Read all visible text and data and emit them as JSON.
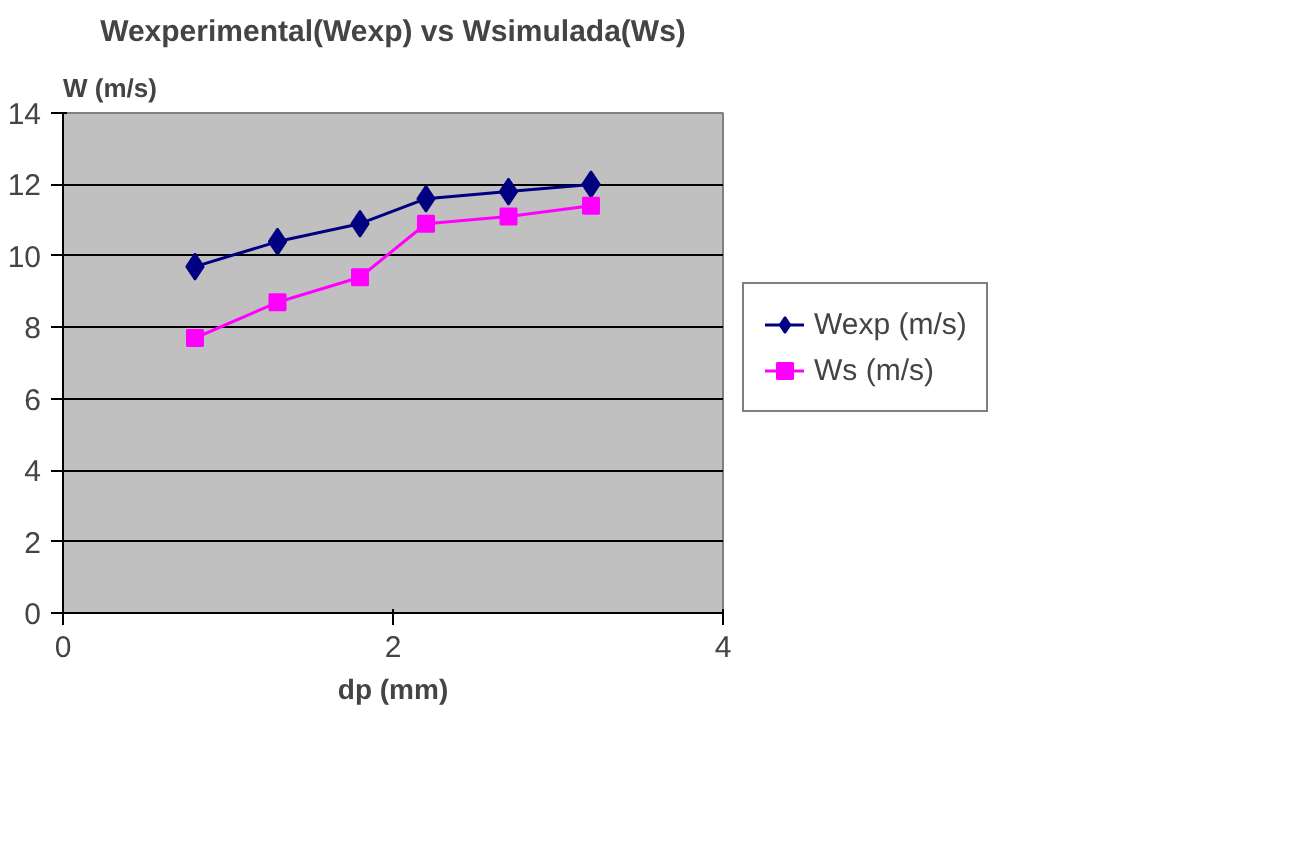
{
  "chart_data": {
    "type": "line",
    "title": "Wexperimental(Wexp) vs Wsimulada(Ws)",
    "xlabel": "dp (mm)",
    "ylabel": "W (m/s)",
    "x": [
      0.8,
      1.3,
      1.8,
      2.2,
      2.7,
      3.2
    ],
    "series": [
      {
        "name": "Wexp (m/s)",
        "color": "#000080",
        "marker": "diamond",
        "values": [
          9.7,
          10.4,
          10.9,
          11.6,
          11.8,
          12.0
        ]
      },
      {
        "name": "Ws (m/s)",
        "color": "#ff00ff",
        "marker": "square",
        "values": [
          7.7,
          8.7,
          9.4,
          10.9,
          11.1,
          11.4
        ]
      }
    ],
    "xlim": [
      0,
      4
    ],
    "xticks": [
      0,
      2,
      4
    ],
    "ylim": [
      0,
      14
    ],
    "yticks": [
      0,
      2,
      4,
      6,
      8,
      10,
      12,
      14
    ],
    "grid": "y",
    "legend": "right",
    "line_style": "solid"
  }
}
